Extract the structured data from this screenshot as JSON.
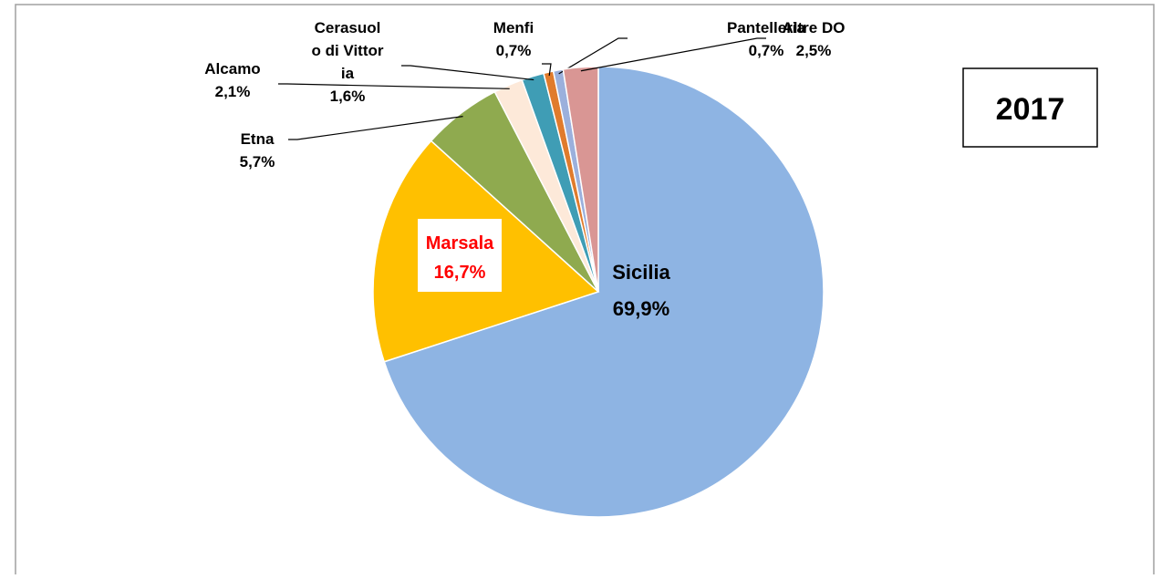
{
  "chart_data": {
    "type": "pie",
    "title": "2017",
    "categories": [
      "Sicilia",
      "Marsala",
      "Etna",
      "Alcamo",
      "Cerasuolo di Vittoria",
      "Menfi",
      "Pantelleria",
      "Altre DO"
    ],
    "values": [
      69.9,
      16.7,
      5.7,
      2.1,
      1.6,
      0.7,
      0.7,
      2.5
    ],
    "value_labels": [
      "69,9%",
      "16,7%",
      "5,7%",
      "2,1%",
      "1,6%",
      "0,7%",
      "0,7%",
      "2,5%"
    ],
    "colors": [
      "#8eb4e3",
      "#ffc000",
      "#8faa4f",
      "#fde9d9",
      "#3f9db5",
      "#e07b2c",
      "#9bb0dc",
      "#d99694"
    ],
    "label_colors": [
      "#000000",
      "#ff0000",
      "#000000",
      "#000000",
      "#000000",
      "#000000",
      "#000000",
      "#000000"
    ]
  }
}
